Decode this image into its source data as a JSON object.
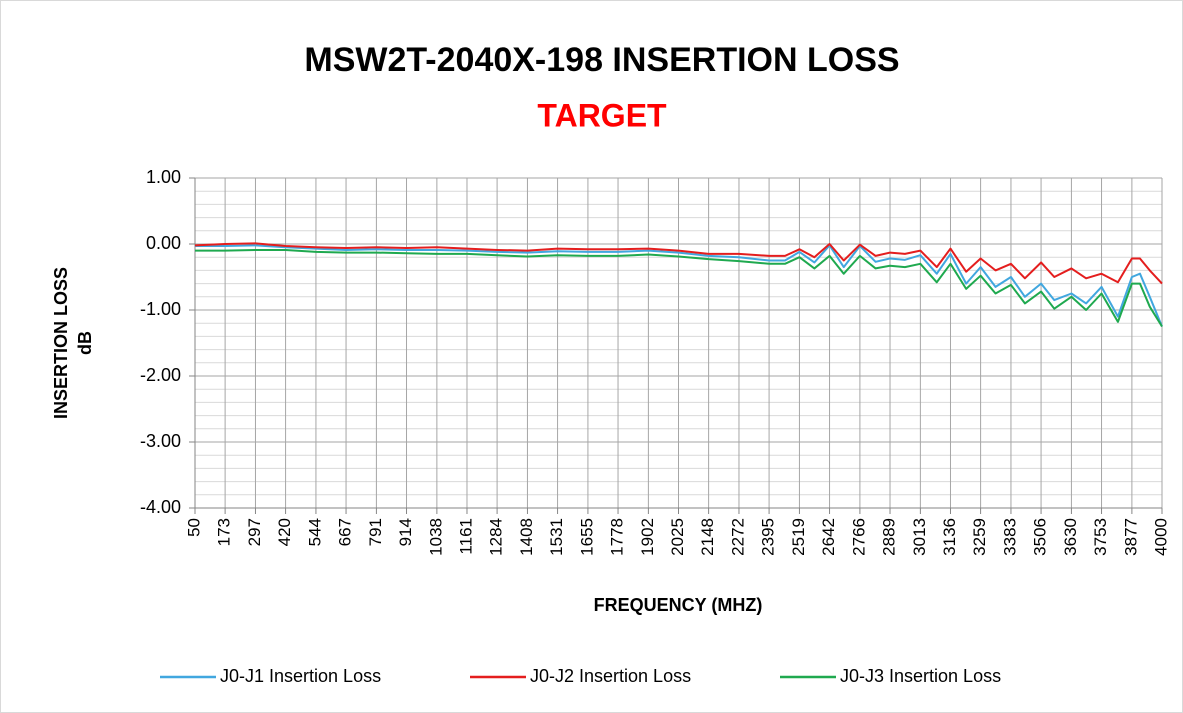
{
  "chart_data": {
    "type": "line",
    "title": "MSW2T-2040X-198 INSERTION LOSS",
    "subtitle": "TARGET",
    "xlabel": "FREQUENCY (MHZ)",
    "ylabel": [
      "INSERTION LOSS",
      "dB"
    ],
    "x": [
      50,
      173,
      297,
      420,
      544,
      667,
      791,
      914,
      1038,
      1161,
      1284,
      1408,
      1531,
      1655,
      1778,
      1902,
      2025,
      2148,
      2272,
      2395,
      2460,
      2519,
      2580,
      2642,
      2700,
      2766,
      2830,
      2889,
      2950,
      3013,
      3080,
      3136,
      3200,
      3259,
      3320,
      3383,
      3440,
      3506,
      3560,
      3630,
      3690,
      3753,
      3820,
      3877,
      3910,
      3950,
      4000
    ],
    "series": [
      {
        "name": "J0-J1 Insertion Loss",
        "color": "#41a7df",
        "values": [
          -0.03,
          -0.03,
          -0.02,
          -0.05,
          -0.07,
          -0.09,
          -0.08,
          -0.09,
          -0.09,
          -0.1,
          -0.12,
          -0.13,
          -0.11,
          -0.12,
          -0.12,
          -0.1,
          -0.13,
          -0.18,
          -0.2,
          -0.25,
          -0.25,
          -0.12,
          -0.28,
          -0.02,
          -0.35,
          -0.03,
          -0.27,
          -0.22,
          -0.24,
          -0.17,
          -0.45,
          -0.15,
          -0.6,
          -0.35,
          -0.65,
          -0.5,
          -0.8,
          -0.6,
          -0.85,
          -0.75,
          -0.9,
          -0.65,
          -1.1,
          -0.5,
          -0.45,
          -0.8,
          -1.25
        ]
      },
      {
        "name": "J0-J2 Insertion Loss",
        "color": "#e41e1e",
        "values": [
          -0.02,
          0.0,
          0.01,
          -0.03,
          -0.05,
          -0.06,
          -0.05,
          -0.06,
          -0.05,
          -0.07,
          -0.09,
          -0.1,
          -0.07,
          -0.08,
          -0.08,
          -0.07,
          -0.1,
          -0.15,
          -0.15,
          -0.18,
          -0.18,
          -0.08,
          -0.2,
          0.0,
          -0.25,
          -0.01,
          -0.18,
          -0.13,
          -0.15,
          -0.1,
          -0.35,
          -0.07,
          -0.42,
          -0.22,
          -0.4,
          -0.3,
          -0.52,
          -0.28,
          -0.5,
          -0.37,
          -0.52,
          -0.45,
          -0.58,
          -0.22,
          -0.22,
          -0.4,
          -0.6
        ]
      },
      {
        "name": "J0-J3 Insertion Loss",
        "color": "#1fa94f",
        "values": [
          -0.1,
          -0.1,
          -0.09,
          -0.09,
          -0.12,
          -0.13,
          -0.13,
          -0.14,
          -0.15,
          -0.15,
          -0.17,
          -0.19,
          -0.17,
          -0.18,
          -0.18,
          -0.16,
          -0.19,
          -0.23,
          -0.26,
          -0.3,
          -0.3,
          -0.2,
          -0.37,
          -0.18,
          -0.45,
          -0.18,
          -0.37,
          -0.33,
          -0.35,
          -0.3,
          -0.58,
          -0.3,
          -0.68,
          -0.48,
          -0.75,
          -0.62,
          -0.9,
          -0.72,
          -0.98,
          -0.8,
          -1.0,
          -0.75,
          -1.18,
          -0.6,
          -0.6,
          -0.95,
          -1.25
        ]
      }
    ],
    "xlim": [
      50,
      4000
    ],
    "xticks": [
      50,
      173,
      297,
      420,
      544,
      667,
      791,
      914,
      1038,
      1161,
      1284,
      1408,
      1531,
      1655,
      1778,
      1902,
      2025,
      2148,
      2272,
      2395,
      2519,
      2642,
      2766,
      2889,
      3013,
      3136,
      3259,
      3383,
      3506,
      3630,
      3753,
      3877,
      4000
    ],
    "ylim": [
      -4,
      1
    ],
    "yticks": [
      {
        "value": 1,
        "label": "1.00"
      },
      {
        "value": 0,
        "label": "0.00"
      },
      {
        "value": -1,
        "label": "-1.00"
      },
      {
        "value": -2,
        "label": "-2.00"
      },
      {
        "value": -3,
        "label": "-3.00"
      },
      {
        "value": -4,
        "label": "-4.00"
      }
    ],
    "y_minor_step": 0.2,
    "grid": true,
    "legend": "bottom"
  }
}
